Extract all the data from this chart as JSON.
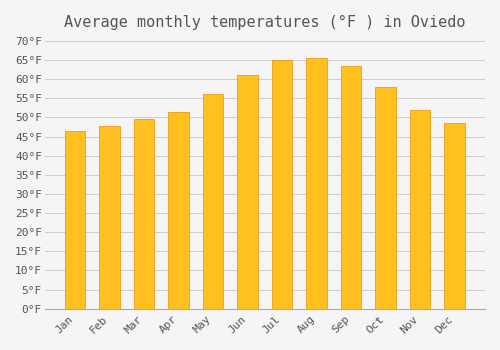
{
  "title": "Average monthly temperatures (°F ) in Oviedo",
  "months": [
    "Jan",
    "Feb",
    "Mar",
    "Apr",
    "May",
    "Jun",
    "Jul",
    "Aug",
    "Sep",
    "Oct",
    "Nov",
    "Dec"
  ],
  "values": [
    46.5,
    47.8,
    49.5,
    51.5,
    56.0,
    61.0,
    65.0,
    65.5,
    63.5,
    58.0,
    52.0,
    48.5
  ],
  "bar_color": "#FFC020",
  "bar_edge_color": "#E89000",
  "background_color": "#F5F5F5",
  "grid_color": "#CCCCCC",
  "text_color": "#555555",
  "ylim": [
    0,
    70
  ],
  "ytick_step": 5,
  "title_fontsize": 11,
  "tick_fontsize": 8,
  "font_family": "monospace"
}
